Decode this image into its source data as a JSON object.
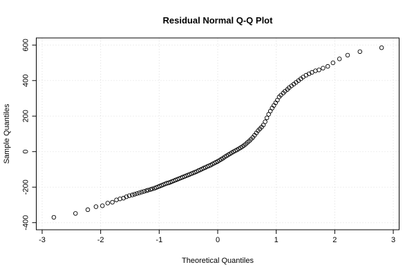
{
  "chart_data": {
    "type": "scatter",
    "title": "Residual Normal Q-Q Plot",
    "xlabel": "Theoretical Quantiles",
    "ylabel": "Sample Quantiles",
    "xlim": [
      -3.1,
      3.1
    ],
    "ylim": [
      -440,
      640
    ],
    "xticks": [
      -3,
      -2,
      -1,
      0,
      1,
      2,
      3
    ],
    "yticks": [
      -400,
      -200,
      0,
      200,
      400,
      600
    ],
    "grid": true,
    "color": "#000000",
    "x": [
      2.8,
      2.43,
      2.22,
      2.08,
      1.97,
      1.88,
      1.8,
      1.73,
      1.67,
      1.61,
      1.56,
      1.51,
      1.46,
      1.42,
      1.38,
      1.34,
      1.3,
      1.26,
      1.22,
      1.19,
      1.15,
      1.12,
      1.08,
      1.05,
      1.02,
      0.99,
      0.96,
      0.93,
      0.9,
      0.87,
      0.84,
      0.81,
      0.78,
      0.75,
      0.72,
      0.69,
      0.66,
      0.63,
      0.6,
      0.57,
      0.54,
      0.51,
      0.48,
      0.45,
      0.42,
      0.39,
      0.36,
      0.33,
      0.3,
      0.27,
      0.24,
      0.21,
      0.18,
      0.15,
      0.12,
      0.09,
      0.06,
      0.03,
      0,
      -0.03,
      -0.06,
      -0.09,
      -0.12,
      -0.15,
      -0.18,
      -0.21,
      -0.24,
      -0.27,
      -0.3,
      -0.33,
      -0.36,
      -0.39,
      -0.42,
      -0.45,
      -0.48,
      -0.51,
      -0.54,
      -0.57,
      -0.6,
      -0.63,
      -0.66,
      -0.69,
      -0.72,
      -0.75,
      -0.78,
      -0.81,
      -0.84,
      -0.87,
      -0.9,
      -0.93,
      -0.96,
      -0.99,
      -1.02,
      -1.05,
      -1.08,
      -1.12,
      -1.15,
      -1.19,
      -1.22,
      -1.26,
      -1.3,
      -1.34,
      -1.38,
      -1.42,
      -1.46,
      -1.51,
      -1.56,
      -1.61,
      -1.67,
      -1.73,
      -1.8,
      -1.88,
      -1.97,
      -2.08,
      -2.22,
      -2.43,
      -2.8
    ],
    "y": [
      585,
      563,
      543,
      522,
      500,
      480,
      470,
      460,
      455,
      446,
      438,
      430,
      420,
      410,
      400,
      390,
      380,
      370,
      360,
      350,
      340,
      330,
      318,
      308,
      290,
      275,
      260,
      245,
      228,
      210,
      190,
      168,
      150,
      138,
      128,
      118,
      105,
      92,
      80,
      70,
      60,
      52,
      43,
      35,
      28,
      22,
      16,
      10,
      5,
      0,
      -6,
      -12,
      -18,
      -24,
      -30,
      -37,
      -43,
      -49,
      -55,
      -60,
      -65,
      -70,
      -76,
      -80,
      -84,
      -89,
      -93,
      -98,
      -103,
      -107,
      -112,
      -116,
      -120,
      -124,
      -128,
      -132,
      -136,
      -140,
      -144,
      -148,
      -152,
      -156,
      -160,
      -164,
      -168,
      -172,
      -176,
      -178,
      -182,
      -186,
      -190,
      -194,
      -198,
      -202,
      -206,
      -210,
      -213,
      -217,
      -220,
      -224,
      -228,
      -232,
      -236,
      -240,
      -244,
      -248,
      -254,
      -262,
      -266,
      -272,
      -285,
      -290,
      -305,
      -310,
      -327,
      -348,
      -370
    ]
  }
}
